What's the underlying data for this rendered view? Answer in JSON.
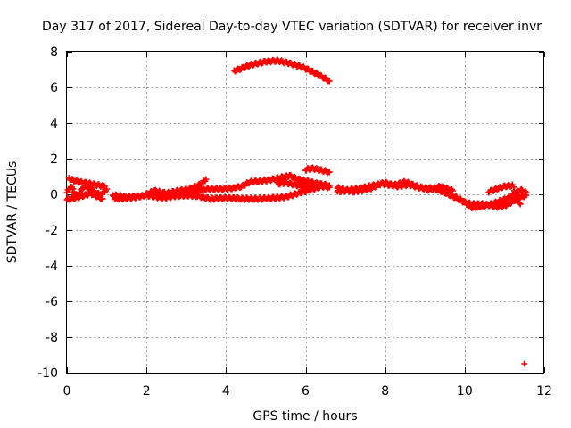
{
  "chart_data": {
    "type": "scatter",
    "title": "Day 317 of 2017, Sidereal Day-to-day VTEC variation (SDTVAR) for receiver invr",
    "xlabel": "GPS time / hours",
    "ylabel": "SDTVAR / TECUs",
    "xlim": [
      0,
      12
    ],
    "ylim": [
      -10,
      8
    ],
    "xticks": [
      0,
      2,
      4,
      6,
      8,
      10,
      12
    ],
    "yticks": [
      -10,
      -8,
      -6,
      -4,
      -2,
      0,
      2,
      4,
      6,
      8
    ],
    "xtick_labels": [
      "0",
      "2",
      "4",
      "6",
      "8",
      "10",
      "12"
    ],
    "ytick_labels": [
      "-10",
      "-8",
      "-6",
      "-4",
      "-2",
      "0",
      "2",
      "4",
      "6",
      "8"
    ],
    "grid": true,
    "marker": "+",
    "color": "#ff0000",
    "series": [
      {
        "name": "receiver invr",
        "tracks": [
          {
            "x": [
              4.2,
              4.6,
              5.0,
              5.3,
              5.6,
              5.9,
              6.2,
              6.45,
              6.6
            ],
            "y": [
              6.9,
              7.25,
              7.45,
              7.5,
              7.35,
              7.15,
              6.85,
              6.55,
              6.35
            ]
          },
          {
            "x": [
              0.0,
              0.1,
              0.25,
              0.45,
              0.65,
              0.85,
              1.0
            ],
            "y": [
              0.1,
              0.45,
              -0.1,
              0.5,
              0.2,
              -0.05,
              0.3
            ]
          },
          {
            "x": [
              0.05,
              0.2,
              0.45,
              0.7,
              0.95
            ],
            "y": [
              0.9,
              0.75,
              0.65,
              0.55,
              0.45
            ]
          },
          {
            "x": [
              0.0,
              0.3,
              0.6,
              0.9
            ],
            "y": [
              -0.3,
              -0.15,
              0.05,
              -0.25
            ]
          },
          {
            "x": [
              1.15,
              1.5,
              1.9,
              2.2,
              2.5,
              2.8,
              3.1,
              3.35,
              3.5
            ],
            "y": [
              -0.05,
              -0.15,
              -0.1,
              0.2,
              0.05,
              0.2,
              0.3,
              0.55,
              0.85
            ]
          },
          {
            "x": [
              1.2,
              1.6,
              2.0,
              2.4,
              2.7,
              3.0
            ],
            "y": [
              -0.25,
              -0.2,
              -0.05,
              -0.2,
              -0.1,
              -0.05
            ]
          },
          {
            "x": [
              3.0,
              3.3,
              3.6,
              3.9,
              4.2,
              4.4,
              4.6,
              4.9,
              5.2,
              5.4,
              5.6,
              5.8,
              6.0,
              6.3,
              6.6
            ],
            "y": [
              0.2,
              0.25,
              0.3,
              0.3,
              0.35,
              0.45,
              0.7,
              0.75,
              0.85,
              0.95,
              1.05,
              0.85,
              0.75,
              0.6,
              0.5
            ]
          },
          {
            "x": [
              3.0,
              3.3,
              3.6,
              4.0,
              4.4,
              4.8,
              5.2,
              5.5,
              5.8,
              6.1,
              6.4,
              6.6
            ],
            "y": [
              -0.05,
              -0.1,
              -0.25,
              -0.2,
              -0.25,
              -0.25,
              -0.2,
              -0.15,
              0.05,
              0.25,
              0.45,
              0.4
            ]
          },
          {
            "x": [
              5.3,
              5.5,
              5.7,
              5.9,
              6.1,
              6.3
            ],
            "y": [
              0.6,
              0.65,
              0.55,
              0.45,
              0.4,
              0.35
            ]
          },
          {
            "x": [
              6.0,
              6.2,
              6.4,
              6.6
            ],
            "y": [
              1.4,
              1.45,
              1.35,
              1.25
            ]
          },
          {
            "x": [
              6.8,
              7.1,
              7.4,
              7.7,
              8.0,
              8.3,
              8.6,
              8.9,
              9.2,
              9.5
            ],
            "y": [
              0.15,
              0.25,
              0.35,
              0.5,
              0.65,
              0.45,
              0.55,
              0.35,
              0.35,
              0.1
            ]
          },
          {
            "x": [
              6.8,
              7.2,
              7.6,
              7.9,
              8.2,
              8.5,
              8.8,
              9.1,
              9.4,
              9.7
            ],
            "y": [
              0.35,
              0.15,
              0.3,
              0.6,
              0.5,
              0.7,
              0.45,
              0.25,
              0.45,
              0.2
            ]
          },
          {
            "x": [
              9.5,
              9.8,
              10.0,
              10.2,
              10.5,
              10.8,
              11.0,
              11.2,
              11.4,
              11.55
            ],
            "y": [
              0.1,
              -0.2,
              -0.45,
              -0.55,
              -0.55,
              -0.7,
              -0.65,
              -0.4,
              -0.15,
              -0.05
            ]
          },
          {
            "x": [
              9.6,
              9.9,
              10.2,
              10.5,
              10.8,
              11.1,
              11.4,
              11.55
            ],
            "y": [
              0.0,
              -0.3,
              -0.75,
              -0.65,
              -0.45,
              -0.2,
              0.25,
              0.1
            ]
          },
          {
            "x": [
              10.6,
              10.8,
              11.0,
              11.2,
              11.4
            ],
            "y": [
              0.15,
              0.3,
              0.45,
              0.5,
              -0.55
            ]
          },
          {
            "x": [
              11.5
            ],
            "y": [
              -9.5
            ]
          }
        ]
      }
    ]
  }
}
